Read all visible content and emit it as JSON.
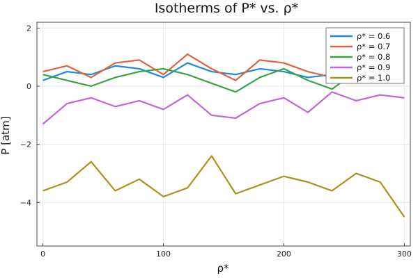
{
  "chart_data": {
    "type": "line",
    "title": "Isotherms of P* vs. ρ*",
    "xlabel": "ρ*",
    "ylabel": "P [atm]",
    "xlim": [
      -5,
      305
    ],
    "ylim": [
      -5.5,
      2.2
    ],
    "xticks": [
      0,
      100,
      200,
      300
    ],
    "xtick_labels": [
      "0",
      "100",
      "200",
      "300"
    ],
    "yticks": [
      2,
      0,
      -2,
      -4
    ],
    "ytick_labels": [
      "2",
      "0",
      "−2",
      "−4"
    ],
    "grid": true,
    "legend_position": "top-right",
    "x_points": [
      0,
      20,
      40,
      60,
      80,
      100,
      120,
      140,
      160,
      180,
      200,
      220,
      240,
      260,
      280,
      300
    ],
    "series": [
      {
        "name": "ρ* = 0.6",
        "color": "#1f8ad6",
        "values": [
          0.2,
          0.5,
          0.4,
          0.7,
          0.6,
          0.3,
          0.8,
          0.5,
          0.4,
          0.6,
          0.5,
          0.3,
          0.4,
          0.7,
          0.5,
          0.8
        ]
      },
      {
        "name": "ρ* = 0.7",
        "color": "#e1623f",
        "values": [
          0.5,
          0.7,
          0.3,
          0.8,
          0.9,
          0.4,
          1.1,
          0.6,
          0.2,
          0.9,
          0.8,
          0.5,
          0.3,
          0.8,
          0.4,
          0.6
        ]
      },
      {
        "name": "ρ* = 0.8",
        "color": "#3ba145",
        "values": [
          0.4,
          0.2,
          0.0,
          0.3,
          0.5,
          0.6,
          0.4,
          0.1,
          -0.2,
          0.3,
          0.6,
          0.2,
          -0.1,
          0.5,
          0.7,
          0.3
        ]
      },
      {
        "name": "ρ* = 0.9",
        "color": "#c065d8",
        "values": [
          -1.3,
          -0.6,
          -0.4,
          -0.7,
          -0.5,
          -0.8,
          -0.3,
          -1.0,
          -1.1,
          -0.6,
          -0.4,
          -0.9,
          -0.2,
          -0.5,
          -0.3,
          -0.4
        ]
      },
      {
        "name": "ρ* = 1.0",
        "color": "#a8911d",
        "values": [
          -3.6,
          -3.3,
          -2.6,
          -3.6,
          -3.2,
          -3.8,
          -3.5,
          -2.4,
          -3.7,
          -3.4,
          -3.1,
          -3.3,
          -3.6,
          -3.0,
          -3.3,
          -4.5
        ]
      }
    ]
  }
}
